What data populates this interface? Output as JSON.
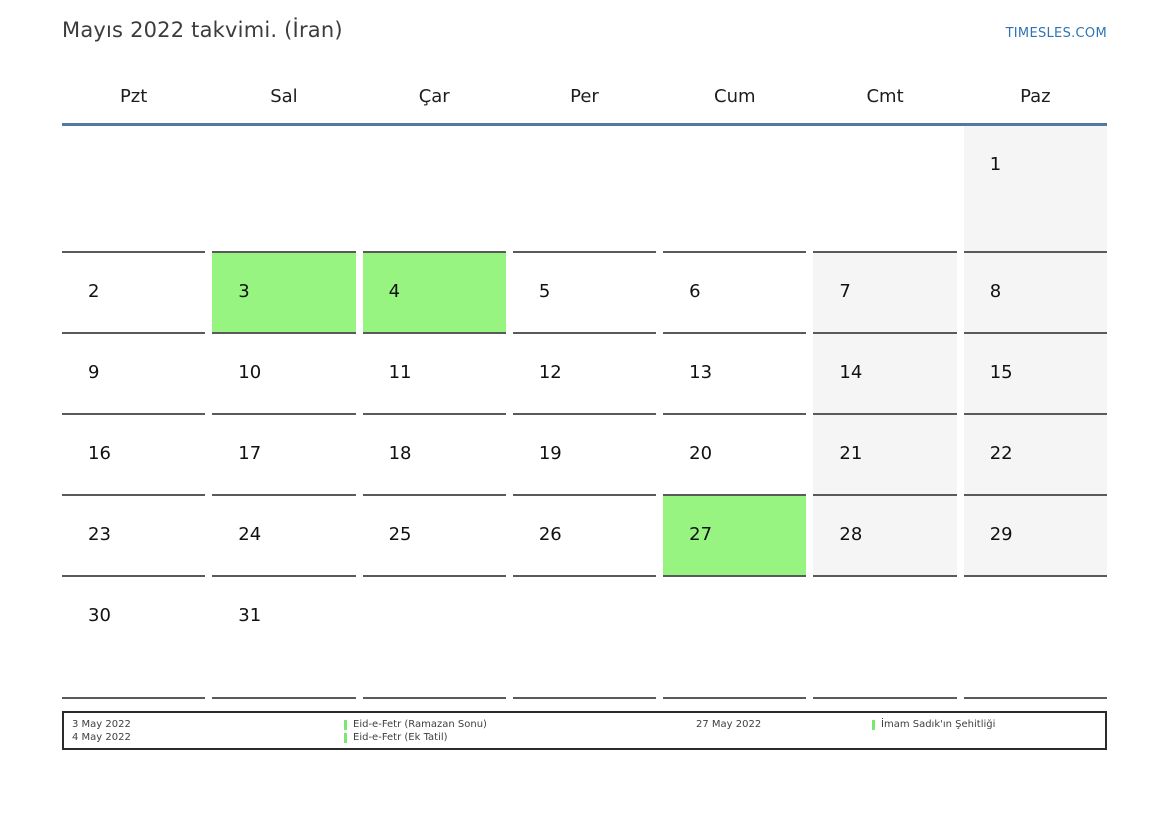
{
  "page": {
    "title": "Mayıs 2022 takvimi. (İran)",
    "site_link": "TIMESLES.COM"
  },
  "colors": {
    "accent_link": "#2e74b5",
    "header_rule": "#5578a2",
    "cell_border": "#5a5a5a",
    "weekend_bg": "#f5f5f5",
    "holiday_green": "#98f480",
    "legend_marker_green": "#78e86e"
  },
  "calendar": {
    "month": "Mayıs 2022",
    "weekdays": [
      "Pzt",
      "Sal",
      "Çar",
      "Per",
      "Cum",
      "Cmt",
      "Paz"
    ],
    "cells": [
      {
        "day": "",
        "weekend": false,
        "holiday": false
      },
      {
        "day": "",
        "weekend": false,
        "holiday": false
      },
      {
        "day": "",
        "weekend": false,
        "holiday": false
      },
      {
        "day": "",
        "weekend": false,
        "holiday": false
      },
      {
        "day": "",
        "weekend": false,
        "holiday": false
      },
      {
        "day": "",
        "weekend": false,
        "holiday": false
      },
      {
        "day": "1",
        "weekend": true,
        "holiday": false
      },
      {
        "day": "2",
        "weekend": false,
        "holiday": false
      },
      {
        "day": "3",
        "weekend": false,
        "holiday": true
      },
      {
        "day": "4",
        "weekend": false,
        "holiday": true
      },
      {
        "day": "5",
        "weekend": false,
        "holiday": false
      },
      {
        "day": "6",
        "weekend": false,
        "holiday": false
      },
      {
        "day": "7",
        "weekend": true,
        "holiday": false
      },
      {
        "day": "8",
        "weekend": true,
        "holiday": false
      },
      {
        "day": "9",
        "weekend": false,
        "holiday": false
      },
      {
        "day": "10",
        "weekend": false,
        "holiday": false
      },
      {
        "day": "11",
        "weekend": false,
        "holiday": false
      },
      {
        "day": "12",
        "weekend": false,
        "holiday": false
      },
      {
        "day": "13",
        "weekend": false,
        "holiday": false
      },
      {
        "day": "14",
        "weekend": true,
        "holiday": false
      },
      {
        "day": "15",
        "weekend": true,
        "holiday": false
      },
      {
        "day": "16",
        "weekend": false,
        "holiday": false
      },
      {
        "day": "17",
        "weekend": false,
        "holiday": false
      },
      {
        "day": "18",
        "weekend": false,
        "holiday": false
      },
      {
        "day": "19",
        "weekend": false,
        "holiday": false
      },
      {
        "day": "20",
        "weekend": false,
        "holiday": false
      },
      {
        "day": "21",
        "weekend": true,
        "holiday": false
      },
      {
        "day": "22",
        "weekend": true,
        "holiday": false
      },
      {
        "day": "23",
        "weekend": false,
        "holiday": false
      },
      {
        "day": "24",
        "weekend": false,
        "holiday": false
      },
      {
        "day": "25",
        "weekend": false,
        "holiday": false
      },
      {
        "day": "26",
        "weekend": false,
        "holiday": false
      },
      {
        "day": "27",
        "weekend": false,
        "holiday": true
      },
      {
        "day": "28",
        "weekend": true,
        "holiday": false
      },
      {
        "day": "29",
        "weekend": true,
        "holiday": false
      },
      {
        "day": "30",
        "weekend": false,
        "holiday": false
      },
      {
        "day": "31",
        "weekend": false,
        "holiday": false
      },
      {
        "day": "",
        "weekend": false,
        "holiday": false
      },
      {
        "day": "",
        "weekend": false,
        "holiday": false
      },
      {
        "day": "",
        "weekend": false,
        "holiday": false
      },
      {
        "day": "",
        "weekend": false,
        "holiday": false
      },
      {
        "day": "",
        "weekend": false,
        "holiday": false
      }
    ]
  },
  "legend": {
    "entries": [
      {
        "dates": [
          "3 May 2022",
          "4 May 2022"
        ],
        "labels": [
          "Eid-e-Fetr (Ramazan Sonu)",
          "Eid-e-Fetr (Ek Tatil)"
        ]
      },
      {
        "dates": [
          "27 May 2022"
        ],
        "labels": [
          "İmam Sadık'ın Şehitliği"
        ]
      }
    ]
  }
}
